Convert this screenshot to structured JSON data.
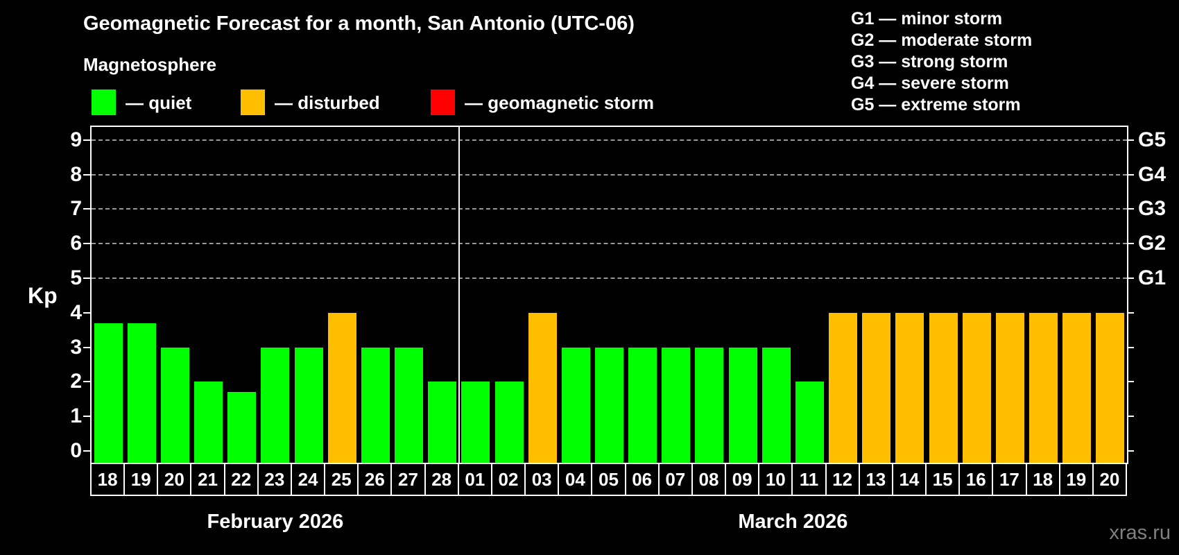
{
  "title": "Geomagnetic Forecast for a month, San Antonio (UTC-06)",
  "subtitle": "Magnetosphere",
  "status_legend": [
    {
      "key": "quiet",
      "label": "— quiet",
      "color": "#00ff00"
    },
    {
      "key": "disturbed",
      "label": "— disturbed",
      "color": "#ffbf00"
    },
    {
      "key": "storm",
      "label": "— geomagnetic storm",
      "color": "#ff0000"
    }
  ],
  "g_legend": [
    "G1 — minor storm",
    "G2 — moderate storm",
    "G3 — strong storm",
    "G4 — severe storm",
    "G5 — extreme storm"
  ],
  "watermark": "xras.ru",
  "chart_data": {
    "type": "bar",
    "title": "Geomagnetic Forecast for a month, San Antonio (UTC-06)",
    "ylabel": "Kp",
    "ylim": [
      0,
      9
    ],
    "y_ticks": [
      0,
      1,
      2,
      3,
      4,
      5,
      6,
      7,
      8,
      9
    ],
    "grid_levels": [
      5,
      6,
      7,
      8,
      9
    ],
    "grid_on": true,
    "legend_position": "top",
    "right_axis": {
      "labels": [
        "G1",
        "G2",
        "G3",
        "G4",
        "G5"
      ],
      "at_kp": [
        5,
        6,
        7,
        8,
        9
      ]
    },
    "status_colors": {
      "quiet": "#00ff00",
      "disturbed": "#ffbf00",
      "storm": "#ff0000"
    },
    "months": [
      {
        "label": "February 2026",
        "days": [
          "18",
          "19",
          "20",
          "21",
          "22",
          "23",
          "24",
          "25",
          "26",
          "27",
          "28"
        ],
        "values": [
          3.7,
          3.7,
          3,
          2,
          1.7,
          3,
          3,
          4,
          3,
          3,
          2
        ],
        "status": [
          "quiet",
          "quiet",
          "quiet",
          "quiet",
          "quiet",
          "quiet",
          "quiet",
          "disturbed",
          "quiet",
          "quiet",
          "quiet"
        ]
      },
      {
        "label": "March 2026",
        "days": [
          "01",
          "02",
          "03",
          "04",
          "05",
          "06",
          "07",
          "08",
          "09",
          "10",
          "11",
          "12",
          "13",
          "14",
          "15",
          "16",
          "17",
          "18",
          "19",
          "20"
        ],
        "values": [
          2,
          2,
          4,
          3,
          3,
          3,
          3,
          3,
          3,
          3,
          2,
          4,
          4,
          4,
          4,
          4,
          4,
          4,
          4,
          4
        ],
        "status": [
          "quiet",
          "quiet",
          "disturbed",
          "quiet",
          "quiet",
          "quiet",
          "quiet",
          "quiet",
          "quiet",
          "quiet",
          "quiet",
          "disturbed",
          "disturbed",
          "disturbed",
          "disturbed",
          "disturbed",
          "disturbed",
          "disturbed",
          "disturbed",
          "disturbed"
        ]
      }
    ]
  }
}
